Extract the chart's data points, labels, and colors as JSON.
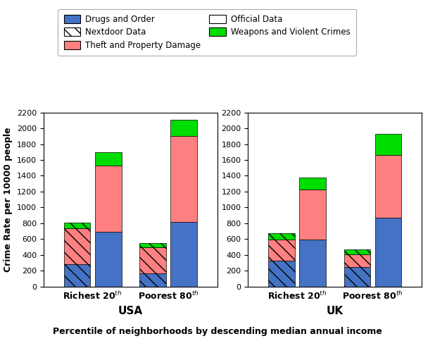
{
  "xlabel": "Percentile of neighborhoods by descending median annual income",
  "ylabel": "Crime Rate per 10000 people",
  "usa": {
    "official": {
      "drugs": [
        280,
        165
      ],
      "theft": [
        455,
        330
      ],
      "weapons": [
        70,
        50
      ]
    },
    "nextdoor": {
      "drugs": [
        690,
        820
      ],
      "theft": [
        835,
        1080
      ],
      "weapons": [
        175,
        210
      ]
    }
  },
  "uk": {
    "official": {
      "drugs": [
        325,
        245
      ],
      "theft": [
        270,
        160
      ],
      "weapons": [
        80,
        65
      ]
    },
    "nextdoor": {
      "drugs": [
        590,
        870
      ],
      "theft": [
        640,
        790
      ],
      "weapons": [
        150,
        270
      ]
    }
  },
  "colors": {
    "drugs": "#4472C4",
    "theft": "#FF8080",
    "weapons": "#00DD00"
  },
  "ylim": [
    0,
    2200
  ],
  "yticks": [
    0,
    200,
    400,
    600,
    800,
    1000,
    1200,
    1400,
    1600,
    1800,
    2000,
    2200
  ],
  "bar_width": 0.35,
  "group_labels": [
    "USA",
    "UK"
  ],
  "legend_labels": {
    "drugs": "Drugs and Order",
    "theft": "Theft and Property Damage",
    "weapons": "Weapons and Violent Crimes",
    "nextdoor": "Nextdoor Data",
    "official": "Official Data"
  }
}
